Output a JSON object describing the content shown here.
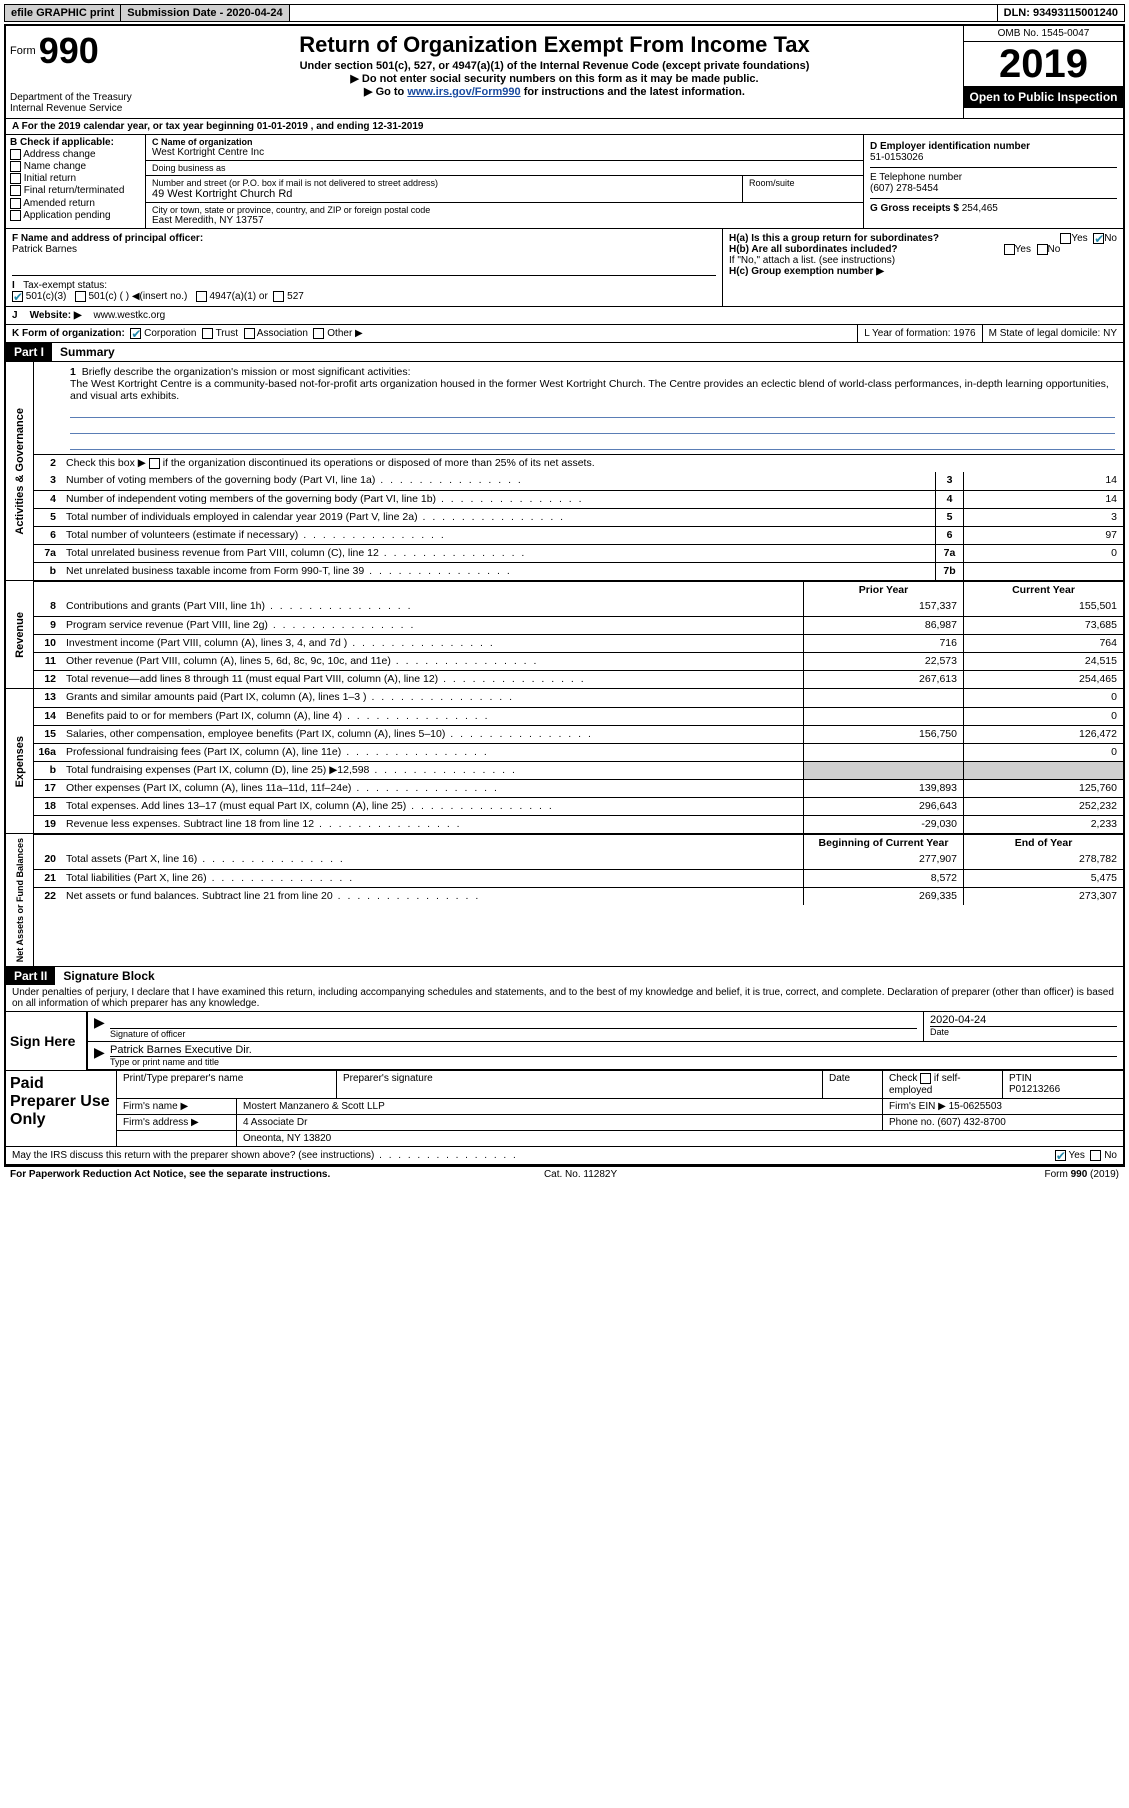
{
  "topbar": {
    "efile": "efile GRAPHIC print",
    "submission_label": "Submission Date - 2020-04-24",
    "dln": "DLN: 93493115001240"
  },
  "header": {
    "form_word": "Form",
    "form_num": "990",
    "dept": "Department of the Treasury",
    "irs": "Internal Revenue Service",
    "title": "Return of Organization Exempt From Income Tax",
    "sub1": "Under section 501(c), 527, or 4947(a)(1) of the Internal Revenue Code (except private foundations)",
    "sub2": "Do not enter social security numbers on this form as it may be made public.",
    "sub3_pre": "Go to ",
    "sub3_link": "www.irs.gov/Form990",
    "sub3_post": " for instructions and the latest information.",
    "omb": "OMB No. 1545-0047",
    "year": "2019",
    "open": "Open to Public Inspection"
  },
  "row_a": "A For the 2019 calendar year, or tax year beginning 01-01-2019   , and ending 12-31-2019",
  "col_b": {
    "label": "B Check if applicable:",
    "opts": [
      "Address change",
      "Name change",
      "Initial return",
      "Final return/terminated",
      "Amended return",
      "Application pending"
    ]
  },
  "col_c": {
    "name_label": "C Name of organization",
    "name": "West Kortright Centre Inc",
    "dba_label": "Doing business as",
    "dba": "",
    "addr_label": "Number and street (or P.O. box if mail is not delivered to street address)",
    "room_label": "Room/suite",
    "addr": "49 West Kortright Church Rd",
    "city_label": "City or town, state or province, country, and ZIP or foreign postal code",
    "city": "East Meredith, NY  13757"
  },
  "col_d": {
    "ein_label": "D Employer identification number",
    "ein": "51-0153026",
    "tel_label": "E Telephone number",
    "tel": "(607) 278-5454",
    "gross_label": "G Gross receipts $ ",
    "gross": "254,465"
  },
  "row_f": {
    "label": "F  Name and address of principal officer:",
    "name": "Patrick Barnes"
  },
  "row_h": {
    "ha": "H(a)  Is this a group return for subordinates?",
    "hb": "H(b)  Are all subordinates included?",
    "hb_note": "If \"No,\" attach a list. (see instructions)",
    "hc": "H(c)  Group exemption number ▶",
    "yes": "Yes",
    "no": "No"
  },
  "row_i": {
    "label": "I",
    "text": "Tax-exempt status:",
    "o1": "501(c)(3)",
    "o2": "501(c) (  ) ◀(insert no.)",
    "o3": "4947(a)(1) or",
    "o4": "527"
  },
  "row_j": {
    "label": "J",
    "text": "Website: ▶",
    "val": "www.westkc.org"
  },
  "row_k": {
    "label": "K Form of organization:",
    "o1": "Corporation",
    "o2": "Trust",
    "o3": "Association",
    "o4": "Other ▶",
    "l": "L Year of formation: 1976",
    "m": "M State of legal domicile: NY"
  },
  "part1": {
    "hdr": "Part I",
    "title": "Summary"
  },
  "mission": {
    "num": "1",
    "label": "Briefly describe the organization's mission or most significant activities:",
    "text": "The West Kortright Centre is a community-based not-for-profit arts organization housed in the former West Kortright Church. The Centre provides an eclectic blend of world-class performances, in-depth learning opportunities, and visual arts exhibits."
  },
  "line2": {
    "num": "2",
    "text": "Check this box ▶",
    "post": "if the organization discontinued its operations or disposed of more than 25% of its net assets."
  },
  "governance_rows": [
    {
      "num": "3",
      "desc": "Number of voting members of the governing body (Part VI, line 1a)",
      "box": "3",
      "val": "14"
    },
    {
      "num": "4",
      "desc": "Number of independent voting members of the governing body (Part VI, line 1b)",
      "box": "4",
      "val": "14"
    },
    {
      "num": "5",
      "desc": "Total number of individuals employed in calendar year 2019 (Part V, line 2a)",
      "box": "5",
      "val": "3"
    },
    {
      "num": "6",
      "desc": "Total number of volunteers (estimate if necessary)",
      "box": "6",
      "val": "97"
    },
    {
      "num": "7a",
      "desc": "Total unrelated business revenue from Part VIII, column (C), line 12",
      "box": "7a",
      "val": "0"
    },
    {
      "num": "b",
      "desc": "Net unrelated business taxable income from Form 990-T, line 39",
      "box": "7b",
      "val": ""
    }
  ],
  "two_col_hdr": {
    "prior": "Prior Year",
    "current": "Current Year"
  },
  "revenue_rows": [
    {
      "num": "8",
      "desc": "Contributions and grants (Part VIII, line 1h)",
      "prior": "157,337",
      "curr": "155,501"
    },
    {
      "num": "9",
      "desc": "Program service revenue (Part VIII, line 2g)",
      "prior": "86,987",
      "curr": "73,685"
    },
    {
      "num": "10",
      "desc": "Investment income (Part VIII, column (A), lines 3, 4, and 7d )",
      "prior": "716",
      "curr": "764"
    },
    {
      "num": "11",
      "desc": "Other revenue (Part VIII, column (A), lines 5, 6d, 8c, 9c, 10c, and 11e)",
      "prior": "22,573",
      "curr": "24,515"
    },
    {
      "num": "12",
      "desc": "Total revenue—add lines 8 through 11 (must equal Part VIII, column (A), line 12)",
      "prior": "267,613",
      "curr": "254,465"
    }
  ],
  "expense_rows": [
    {
      "num": "13",
      "desc": "Grants and similar amounts paid (Part IX, column (A), lines 1–3 )",
      "prior": "",
      "curr": "0"
    },
    {
      "num": "14",
      "desc": "Benefits paid to or for members (Part IX, column (A), line 4)",
      "prior": "",
      "curr": "0"
    },
    {
      "num": "15",
      "desc": "Salaries, other compensation, employee benefits (Part IX, column (A), lines 5–10)",
      "prior": "156,750",
      "curr": "126,472"
    },
    {
      "num": "16a",
      "desc": "Professional fundraising fees (Part IX, column (A), line 11e)",
      "prior": "",
      "curr": "0"
    },
    {
      "num": "b",
      "desc": "Total fundraising expenses (Part IX, column (D), line 25) ▶12,598",
      "prior": "shade",
      "curr": "shade"
    },
    {
      "num": "17",
      "desc": "Other expenses (Part IX, column (A), lines 11a–11d, 11f–24e)",
      "prior": "139,893",
      "curr": "125,760"
    },
    {
      "num": "18",
      "desc": "Total expenses. Add lines 13–17 (must equal Part IX, column (A), line 25)",
      "prior": "296,643",
      "curr": "252,232"
    },
    {
      "num": "19",
      "desc": "Revenue less expenses. Subtract line 18 from line 12",
      "prior": "-29,030",
      "curr": "2,233"
    }
  ],
  "net_hdr": {
    "beg": "Beginning of Current Year",
    "end": "End of Year"
  },
  "net_rows": [
    {
      "num": "20",
      "desc": "Total assets (Part X, line 16)",
      "prior": "277,907",
      "curr": "278,782"
    },
    {
      "num": "21",
      "desc": "Total liabilities (Part X, line 26)",
      "prior": "8,572",
      "curr": "5,475"
    },
    {
      "num": "22",
      "desc": "Net assets or fund balances. Subtract line 21 from line 20",
      "prior": "269,335",
      "curr": "273,307"
    }
  ],
  "sides": {
    "gov": "Activities & Governance",
    "rev": "Revenue",
    "exp": "Expenses",
    "net": "Net Assets or Fund Balances"
  },
  "part2": {
    "hdr": "Part II",
    "title": "Signature Block"
  },
  "penalty": "Under penalties of perjury, I declare that I have examined this return, including accompanying schedules and statements, and to the best of my knowledge and belief, it is true, correct, and complete. Declaration of preparer (other than officer) is based on all information of which preparer has any knowledge.",
  "sign": {
    "side": "Sign Here",
    "sig_label": "Signature of officer",
    "date_label": "Date",
    "date": "2020-04-24",
    "name": "Patrick Barnes  Executive Dir.",
    "name_label": "Type or print name and title"
  },
  "prep": {
    "side": "Paid Preparer Use Only",
    "h1": "Print/Type preparer's name",
    "h2": "Preparer's signature",
    "h3": "Date",
    "h4_pre": "Check",
    "h4_post": "if self-employed",
    "h5": "PTIN",
    "ptin": "P01213266",
    "firm_label": "Firm's name    ▶",
    "firm": "Mostert Manzanero & Scott LLP",
    "ein_label": "Firm's EIN ▶",
    "ein": "15-0625503",
    "addr_label": "Firm's address ▶",
    "addr1": "4 Associate Dr",
    "addr2": "Oneonta, NY  13820",
    "phone_label": "Phone no.",
    "phone": "(607) 432-8700"
  },
  "discuss": {
    "text": "May the IRS discuss this return with the preparer shown above? (see instructions)",
    "yes": "Yes",
    "no": "No"
  },
  "footer": {
    "left": "For Paperwork Reduction Act Notice, see the separate instructions.",
    "mid": "Cat. No. 11282Y",
    "right": "Form 990 (2019)"
  },
  "colors": {
    "link": "#1a4ba0",
    "check": "#2288aa",
    "rule": "#5a7db5"
  }
}
